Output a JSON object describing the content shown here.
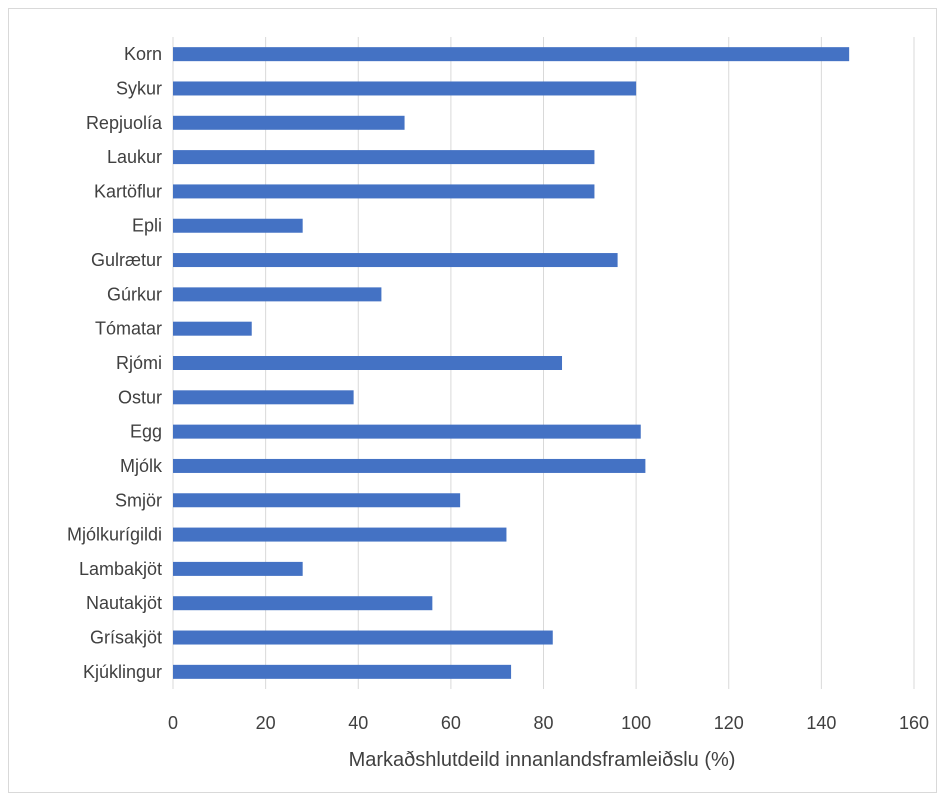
{
  "chart_data": {
    "type": "bar",
    "orientation": "horizontal",
    "categories": [
      "Korn",
      "Sykur",
      "Repjuolía",
      "Laukur",
      "Kartöflur",
      "Epli",
      "Gulrætur",
      "Gúrkur",
      "Tómatar",
      "Rjómi",
      "Ostur",
      "Egg",
      "Mjólk",
      "Smjör",
      "Mjólkurígildi",
      "Lambakjöt",
      "Nautakjöt",
      "Grísakjöt",
      "Kjúklingur"
    ],
    "values": [
      146,
      100,
      50,
      91,
      91,
      28,
      96,
      45,
      17,
      84,
      39,
      101,
      102,
      62,
      72,
      28,
      56,
      82,
      73
    ],
    "title": "",
    "xlabel": "Markaðshlutdeild innanlandsframleiðslu (%)",
    "ylabel": "",
    "xlim": [
      0,
      160
    ],
    "xticks": [
      "0",
      "20",
      "40",
      "60",
      "80",
      "100",
      "120",
      "140",
      "160"
    ],
    "grid": "vertical",
    "legend": "none",
    "bar_color": "#4472c4",
    "grid_color": "#d9d9d9"
  }
}
